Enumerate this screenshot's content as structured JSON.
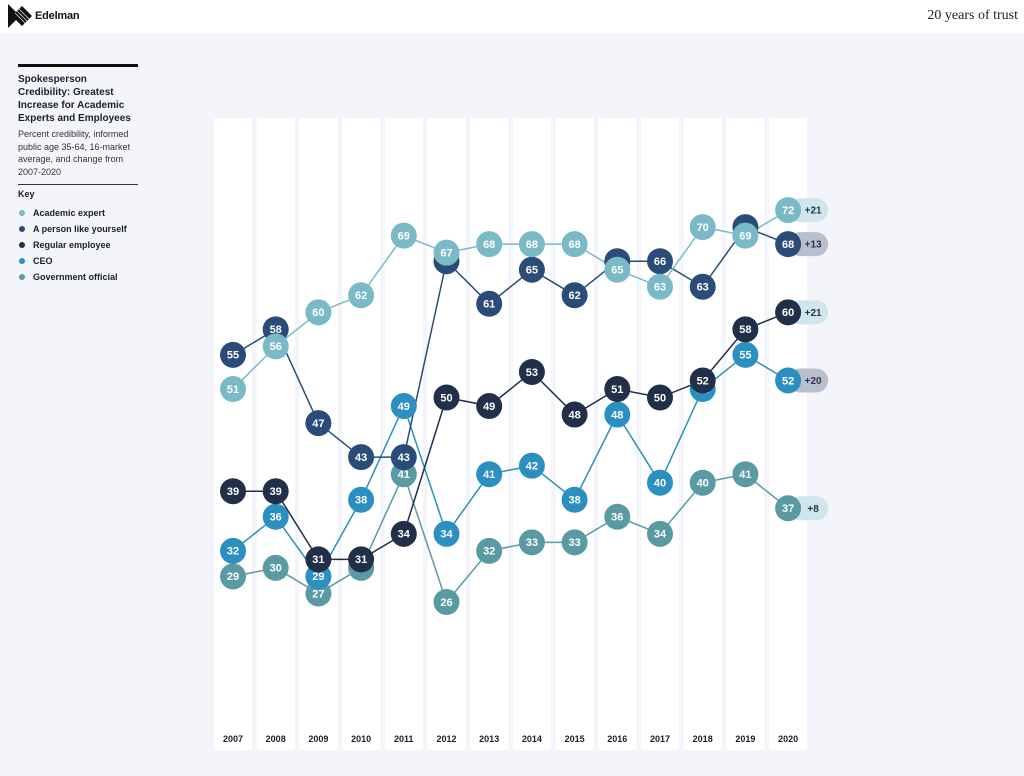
{
  "header": {
    "logo_text": "Edelman",
    "site_title": "20 years of trust"
  },
  "sidebar": {
    "title": "Spokesperson Credibility: Greatest Increase for Academic Experts and Employees",
    "subtitle": "Percent credibility, informed public age 35-64, 16-market average, and change from 2007-2020",
    "key_title": "Key"
  },
  "colors": {
    "academic": "#7ab9c6",
    "person": "#2b4c78",
    "employee": "#222f48",
    "ceo": "#2b8fc1",
    "government": "#5a9aa3"
  },
  "chart_data": {
    "type": "line",
    "x": [
      "2007",
      "2008",
      "2009",
      "2010",
      "2011",
      "2012",
      "2013",
      "2014",
      "2015",
      "2016",
      "2017",
      "2018",
      "2019",
      "2020"
    ],
    "series": [
      {
        "name": "Academic expert",
        "key": "academic",
        "values": [
          51,
          56,
          60,
          62,
          69,
          67,
          68,
          68,
          68,
          65,
          63,
          70,
          69,
          72
        ],
        "change": "+21"
      },
      {
        "name": "A person like yourself",
        "key": "person",
        "values": [
          55,
          58,
          47,
          43,
          43,
          66,
          61,
          65,
          62,
          66,
          66,
          63,
          70,
          68
        ],
        "change": "+13"
      },
      {
        "name": "Regular employee",
        "key": "employee",
        "values": [
          39,
          39,
          31,
          31,
          34,
          50,
          49,
          53,
          48,
          51,
          50,
          52,
          58,
          60
        ],
        "change": "+21"
      },
      {
        "name": "CEO",
        "key": "ceo",
        "values": [
          32,
          36,
          29,
          38,
          49,
          34,
          41,
          42,
          38,
          48,
          40,
          51,
          55,
          52
        ],
        "change": "+20"
      },
      {
        "name": "Government official",
        "key": "government",
        "values": [
          29,
          30,
          27,
          30,
          41,
          26,
          32,
          33,
          33,
          36,
          34,
          40,
          41,
          37
        ],
        "change": "+8"
      }
    ],
    "series_order_drawn": [
      "government",
      "ceo",
      "employee",
      "person",
      "academic"
    ],
    "legend_position": "left",
    "grid": false
  }
}
